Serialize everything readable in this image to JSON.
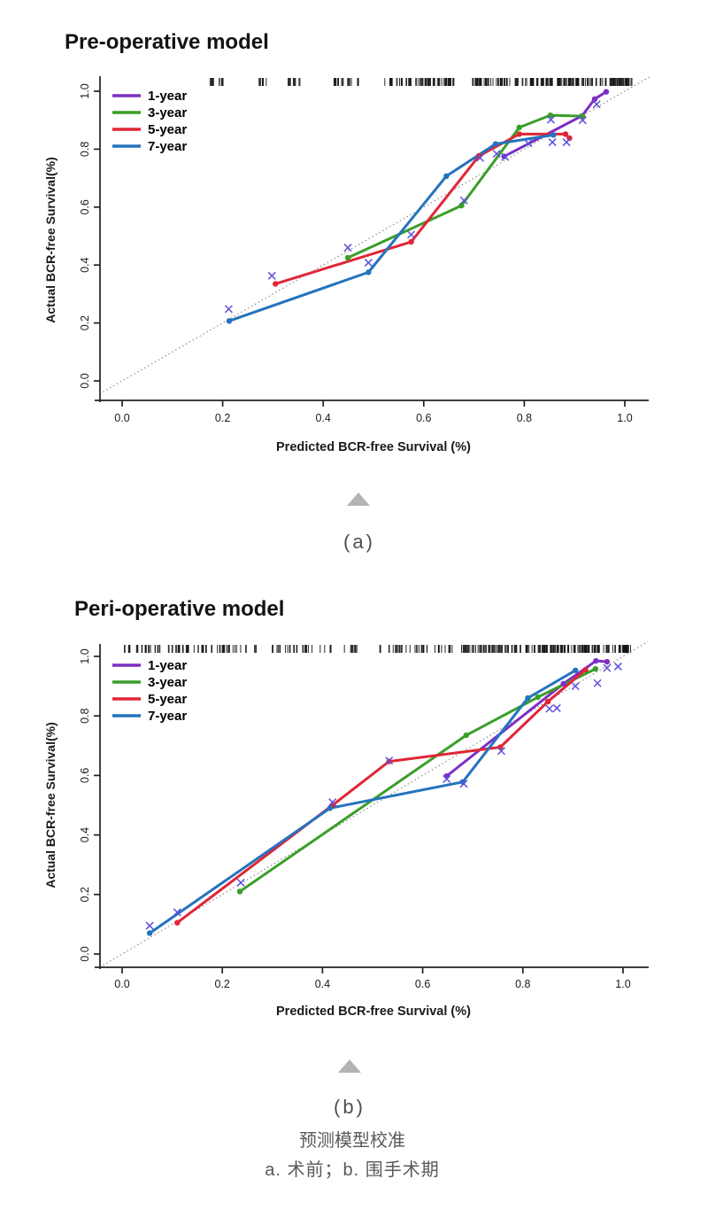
{
  "figures": [
    {
      "panel_label": "(a)",
      "title": "Pre-operative model",
      "xlabel": "Predicted BCR-free Survival (%)",
      "ylabel": "Actual BCR-free Survival(%)",
      "chart_data": {
        "type": "line",
        "title": "Pre-operative model",
        "xlabel": "Predicted BCR-free Survival (%)",
        "ylabel": "Actual BCR-free Survival(%)",
        "xlim": [
          0,
          1
        ],
        "ylim": [
          0,
          1
        ],
        "grid": false,
        "legend_position": "top-left",
        "tick_values": [
          0,
          0.2,
          0.4,
          0.6,
          0.8,
          1.0
        ],
        "xtick_labels": [
          "0.0",
          "0.2",
          "0.4",
          "0.6",
          "0.8",
          "1.0"
        ],
        "ytick_labels": [
          "0.0",
          "0.2",
          "0.4",
          "0.6",
          "0.8",
          "1.0"
        ],
        "reference_line": {
          "type": "identity-diagonal",
          "style": "dotted",
          "range": [
            -0.045,
            1.05
          ]
        },
        "series": [
          {
            "name": "1-year",
            "color": "#7d2ec4",
            "marker": "dot",
            "points": [
              [
                0.76,
                0.775
              ],
              [
                0.915,
                0.915
              ],
              [
                0.94,
                0.973
              ],
              [
                0.963,
                0.998
              ]
            ]
          },
          {
            "name": "3-year",
            "color": "#3a9e28",
            "marker": "dot",
            "points": [
              [
                0.449,
                0.425
              ],
              [
                0.675,
                0.605
              ],
              [
                0.79,
                0.875
              ],
              [
                0.852,
                0.917
              ],
              [
                0.916,
                0.914
              ]
            ]
          },
          {
            "name": "5-year",
            "color": "#e02636",
            "marker": "dot",
            "points": [
              [
                0.305,
                0.335
              ],
              [
                0.575,
                0.48
              ],
              [
                0.71,
                0.777
              ],
              [
                0.79,
                0.852
              ],
              [
                0.882,
                0.852
              ],
              [
                0.89,
                0.838
              ]
            ]
          },
          {
            "name": "7-year",
            "color": "#2473bd",
            "marker": "dot",
            "points": [
              [
                0.213,
                0.207
              ],
              [
                0.49,
                0.375
              ],
              [
                0.645,
                0.707
              ],
              [
                0.743,
                0.818
              ],
              [
                0.858,
                0.849
              ]
            ]
          }
        ],
        "bias_corrected_markers": {
          "symbol": "x",
          "color": "#5b50dd",
          "points": [
            [
              0.212,
              0.248
            ],
            [
              0.298,
              0.363
            ],
            [
              0.449,
              0.46
            ],
            [
              0.49,
              0.408
            ],
            [
              0.575,
              0.505
            ],
            [
              0.68,
              0.623
            ],
            [
              0.712,
              0.77
            ],
            [
              0.745,
              0.784
            ],
            [
              0.762,
              0.773
            ],
            [
              0.808,
              0.82
            ],
            [
              0.856,
              0.824
            ],
            [
              0.884,
              0.824
            ],
            [
              0.853,
              0.902
            ],
            [
              0.916,
              0.9
            ],
            [
              0.944,
              0.955
            ]
          ]
        },
        "rug": {
          "position": "top",
          "clusters": [
            {
              "from": 0.175,
              "to": 0.205,
              "count": 10
            },
            {
              "from": 0.27,
              "to": 0.3,
              "count": 7
            },
            {
              "from": 0.325,
              "to": 0.36,
              "count": 8
            },
            {
              "from": 0.42,
              "to": 0.475,
              "count": 13
            },
            {
              "from": 0.52,
              "to": 0.565,
              "count": 10
            },
            {
              "from": 0.565,
              "to": 0.665,
              "count": 42
            },
            {
              "from": 0.695,
              "to": 0.775,
              "count": 34
            },
            {
              "from": 0.775,
              "to": 0.86,
              "count": 30
            },
            {
              "from": 0.865,
              "to": 1.015,
              "count": 85
            }
          ]
        }
      }
    },
    {
      "panel_label": "(b)",
      "title": "Peri-operative model",
      "xlabel": "Predicted BCR-free Survival (%)",
      "ylabel": "Actual BCR-free Survival(%)",
      "chart_data": {
        "type": "line",
        "title": "Peri-operative model",
        "xlabel": "Predicted BCR-free Survival (%)",
        "ylabel": "Actual BCR-free Survival(%)",
        "xlim": [
          0,
          1
        ],
        "ylim": [
          0,
          1
        ],
        "grid": false,
        "legend_position": "top-left",
        "tick_values": [
          0,
          0.2,
          0.4,
          0.6,
          0.8,
          1.0
        ],
        "xtick_labels": [
          "0.0",
          "0.2",
          "0.4",
          "0.6",
          "0.8",
          "1.0"
        ],
        "ytick_labels": [
          "0.0",
          "0.2",
          "0.4",
          "0.6",
          "0.8",
          "1.0"
        ],
        "reference_line": {
          "type": "identity-diagonal",
          "style": "dotted",
          "range": [
            -0.045,
            1.05
          ]
        },
        "series": [
          {
            "name": "1-year",
            "color": "#7d2ec4",
            "marker": "dot",
            "points": [
              [
                0.648,
                0.598
              ],
              [
                0.881,
                0.908
              ],
              [
                0.946,
                0.985
              ],
              [
                0.968,
                0.982
              ]
            ]
          },
          {
            "name": "3-year",
            "color": "#3a9e28",
            "marker": "dot",
            "points": [
              [
                0.235,
                0.21
              ],
              [
                0.687,
                0.735
              ],
              [
                0.83,
                0.863
              ],
              [
                0.945,
                0.958
              ]
            ]
          },
          {
            "name": "5-year",
            "color": "#e02636",
            "marker": "dot",
            "points": [
              [
                0.11,
                0.105
              ],
              [
                0.42,
                0.5
              ],
              [
                0.533,
                0.647
              ],
              [
                0.755,
                0.695
              ],
              [
                0.85,
                0.848
              ],
              [
                0.925,
                0.955
              ]
            ]
          },
          {
            "name": "7-year",
            "color": "#2473bd",
            "marker": "dot",
            "points": [
              [
                0.055,
                0.07
              ],
              [
                0.415,
                0.49
              ],
              [
                0.68,
                0.578
              ],
              [
                0.81,
                0.86
              ],
              [
                0.905,
                0.953
              ]
            ]
          }
        ],
        "bias_corrected_markers": {
          "symbol": "x",
          "color": "#5b50dd",
          "points": [
            [
              0.055,
              0.095
            ],
            [
              0.11,
              0.14
            ],
            [
              0.237,
              0.24
            ],
            [
              0.42,
              0.51
            ],
            [
              0.533,
              0.65
            ],
            [
              0.648,
              0.588
            ],
            [
              0.682,
              0.572
            ],
            [
              0.757,
              0.682
            ],
            [
              0.853,
              0.824
            ],
            [
              0.868,
              0.826
            ],
            [
              0.905,
              0.9
            ],
            [
              0.949,
              0.91
            ],
            [
              0.968,
              0.961
            ],
            [
              0.99,
              0.966
            ]
          ]
        },
        "rug": {
          "position": "top",
          "clusters": [
            {
              "from": 0.005,
              "to": 0.065,
              "count": 16
            },
            {
              "from": 0.065,
              "to": 0.135,
              "count": 18
            },
            {
              "from": 0.14,
              "to": 0.27,
              "count": 26
            },
            {
              "from": 0.3,
              "to": 0.38,
              "count": 16
            },
            {
              "from": 0.39,
              "to": 0.47,
              "count": 13
            },
            {
              "from": 0.5,
              "to": 0.575,
              "count": 15
            },
            {
              "from": 0.58,
              "to": 0.66,
              "count": 18
            },
            {
              "from": 0.66,
              "to": 0.8,
              "count": 45
            },
            {
              "from": 0.8,
              "to": 1.02,
              "count": 105
            }
          ]
        }
      }
    }
  ],
  "footer": {
    "caption_line1": "预测模型校准",
    "caption_line2": "a. 术前；b. 围手术期"
  },
  "colors": {
    "rug": "#151515",
    "reference_line": "#777777",
    "axis": "#222222",
    "separator_triangle": "#b3b3b3",
    "caption_text": "#595959"
  }
}
